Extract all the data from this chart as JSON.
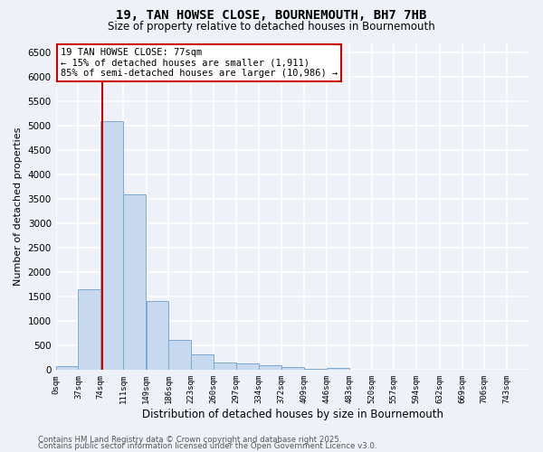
{
  "title": "19, TAN HOWSE CLOSE, BOURNEMOUTH, BH7 7HB",
  "subtitle": "Size of property relative to detached houses in Bournemouth",
  "xlabel": "Distribution of detached houses by size in Bournemouth",
  "ylabel": "Number of detached properties",
  "bar_color": "#c8d8ee",
  "bar_edge_color": "#7aaad0",
  "bin_labels": [
    "0sqm",
    "37sqm",
    "74sqm",
    "111sqm",
    "149sqm",
    "186sqm",
    "223sqm",
    "260sqm",
    "297sqm",
    "334sqm",
    "372sqm",
    "409sqm",
    "446sqm",
    "483sqm",
    "520sqm",
    "557sqm",
    "594sqm",
    "632sqm",
    "669sqm",
    "706sqm",
    "743sqm"
  ],
  "bin_edges": [
    0,
    37,
    74,
    111,
    149,
    186,
    223,
    260,
    297,
    334,
    372,
    409,
    446,
    483,
    520,
    557,
    594,
    632,
    669,
    706,
    743
  ],
  "bar_heights": [
    75,
    1650,
    5100,
    3600,
    1420,
    620,
    320,
    155,
    130,
    100,
    55,
    30,
    50,
    5,
    5,
    5,
    3,
    2,
    2,
    1
  ],
  "property_size": 77,
  "red_line_color": "#cc0000",
  "annotation_line1": "19 TAN HOWSE CLOSE: 77sqm",
  "annotation_line2": "← 15% of detached houses are smaller (1,911)",
  "annotation_line3": "85% of semi-detached houses are larger (10,986) →",
  "annotation_box_color": "#ffffff",
  "annotation_border_color": "#cc0000",
  "ylim": [
    0,
    6700
  ],
  "yticks": [
    0,
    500,
    1000,
    1500,
    2000,
    2500,
    3000,
    3500,
    4000,
    4500,
    5000,
    5500,
    6000,
    6500
  ],
  "footnote1": "Contains HM Land Registry data © Crown copyright and database right 2025.",
  "footnote2": "Contains public sector information licensed under the Open Government Licence v3.0.",
  "background_color": "#eef2f8",
  "grid_color": "#ffffff"
}
